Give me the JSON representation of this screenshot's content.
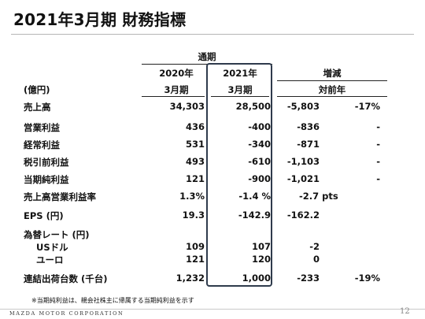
{
  "title": "2021年3月期 財務指標",
  "header": {
    "period_group": "通期",
    "col_2020_year": "2020年",
    "col_2020_period": "3月期",
    "col_2021_year": "2021年",
    "col_2021_period": "3月期",
    "change_group": "増減",
    "change_sub": "対前年",
    "unit": "(億円)"
  },
  "rows": [
    {
      "label": "売上高",
      "v2020": "34,303",
      "v2021": "28,500",
      "diff": "-5,803",
      "pct": "-17%"
    },
    {
      "label": "営業利益",
      "v2020": "436",
      "v2021": "-400",
      "diff": "-836",
      "pct": "-"
    },
    {
      "label": "経常利益",
      "v2020": "531",
      "v2021": "-340",
      "diff": "-871",
      "pct": "-"
    },
    {
      "label": "税引前利益",
      "v2020": "493",
      "v2021": "-610",
      "diff": "-1,103",
      "pct": "-"
    },
    {
      "label": "当期純利益",
      "v2020": "121",
      "v2021": "-900",
      "diff": "-1,021",
      "pct": "-"
    },
    {
      "label": "売上高営業利益率",
      "v2020": "1.3%",
      "v2021": "-1.4 %",
      "diff": "-2.7 pts",
      "pct": ""
    },
    {
      "label": "EPS (円)",
      "v2020": "19.3",
      "v2021": "-142.9",
      "diff": "-162.2",
      "pct": ""
    }
  ],
  "fx": {
    "label": "為替レート (円)",
    "items": [
      {
        "label": "USドル",
        "v2020": "109",
        "v2021": "107",
        "diff": "-2"
      },
      {
        "label": "ユーロ",
        "v2020": "121",
        "v2021": "120",
        "diff": "0"
      }
    ]
  },
  "shipments": {
    "label": "連結出荷台数 (千台)",
    "v2020": "1,232",
    "v2021": "1,000",
    "diff": "-233",
    "pct": "-19%"
  },
  "footnote": "※当期純利益は、親会社株主に帰属する当期純利益を示す",
  "footer": {
    "logo": "MAZDA MOTOR CORPORATION",
    "page": "12"
  }
}
